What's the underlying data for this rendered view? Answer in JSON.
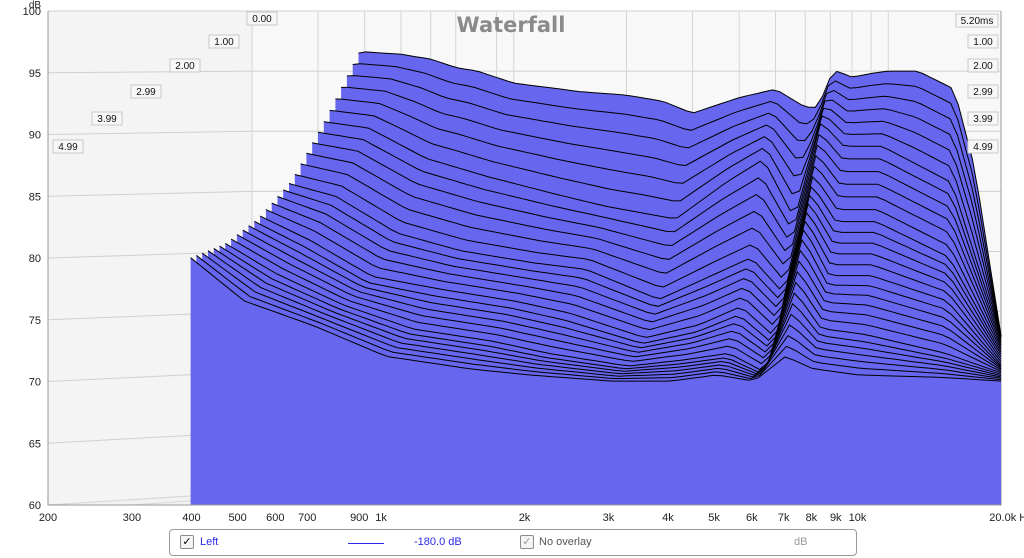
{
  "chart_data": {
    "type": "area",
    "title": "Waterfall",
    "ylabel": "dB",
    "xlabel_unit": "Hz",
    "ylim": [
      60,
      100
    ],
    "y_ticks": [
      "60",
      "65",
      "70",
      "75",
      "80",
      "85",
      "90",
      "95",
      "100"
    ],
    "x_ticks": [
      {
        "hz": 200,
        "label": "200"
      },
      {
        "hz": 300,
        "label": "300"
      },
      {
        "hz": 400,
        "label": "400"
      },
      {
        "hz": 500,
        "label": "500"
      },
      {
        "hz": 600,
        "label": "600"
      },
      {
        "hz": 700,
        "label": "700"
      },
      {
        "hz": 900,
        "label": "900"
      },
      {
        "hz": 1000,
        "label": "1k"
      },
      {
        "hz": 2000,
        "label": "2k"
      },
      {
        "hz": 3000,
        "label": "3k"
      },
      {
        "hz": 4000,
        "label": "4k"
      },
      {
        "hz": 5000,
        "label": "5k"
      },
      {
        "hz": 6000,
        "label": "6k"
      },
      {
        "hz": 7000,
        "label": "7k"
      },
      {
        "hz": 8000,
        "label": "8k"
      },
      {
        "hz": 9000,
        "label": "9k"
      },
      {
        "hz": 10000,
        "label": "10k"
      },
      {
        "hz": 20000,
        "label": "20.0k Hz"
      }
    ],
    "time_ticks_left": [
      "0.00",
      "1.00",
      "2.00",
      "2.99",
      "3.99",
      "4.99"
    ],
    "time_ticks_right": [
      "5.20ms",
      "1.00",
      "2.00",
      "2.99",
      "3.99",
      "4.99"
    ],
    "fill_color": "#6666ee",
    "line_color": "#000000",
    "series": [
      {
        "name": "Left",
        "time_ms": 0.0,
        "freq_hz": [
          385,
          400,
          500,
          600,
          700,
          800,
          1000,
          1500,
          2000,
          2500,
          3000,
          4000,
          5000,
          6000,
          6500,
          7000,
          7300,
          8000,
          9000,
          10000,
          12000,
          15000,
          17000,
          20000
        ],
        "db": [
          96.5,
          96.6,
          96.4,
          96.0,
          95.3,
          95.0,
          94.0,
          93.3,
          93.0,
          92.5,
          91.5,
          92.8,
          93.5,
          92.0,
          92.0,
          94.5,
          95.0,
          94.5,
          94.8,
          95.0,
          95.0,
          93.5,
          87,
          73
        ]
      },
      {
        "time_ms": 1.0,
        "freq_hz": [
          385,
          500,
          700,
          1000,
          1500,
          2000,
          3000,
          4000,
          5000,
          6000,
          7000,
          8000,
          10000,
          15000,
          20000
        ],
        "db": [
          91,
          90.5,
          88,
          86.5,
          85,
          84,
          83,
          86,
          88,
          83,
          91,
          89,
          89,
          86,
          73
        ]
      },
      {
        "time_ms": 2.0,
        "freq_hz": [
          385,
          500,
          700,
          1000,
          1500,
          2000,
          3000,
          4000,
          5000,
          6000,
          7000,
          8000,
          10000,
          15000,
          20000
        ],
        "db": [
          86,
          85,
          82,
          80.5,
          79.5,
          79,
          76.5,
          78.5,
          80,
          77,
          86,
          83,
          83,
          80,
          72
        ]
      },
      {
        "time_ms": 2.99,
        "freq_hz": [
          385,
          500,
          700,
          1000,
          1500,
          2000,
          3000,
          4000,
          5000,
          6000,
          7000,
          8000,
          10000,
          15000,
          20000
        ],
        "db": [
          83,
          81,
          78,
          77,
          76,
          75,
          73,
          74,
          75.5,
          73,
          82,
          78,
          78,
          76,
          71
        ]
      },
      {
        "time_ms": 3.99,
        "freq_hz": [
          385,
          500,
          700,
          1000,
          1500,
          2000,
          3000,
          4000,
          5000,
          6000,
          7000,
          8000,
          10000,
          15000,
          20000
        ],
        "db": [
          81,
          78.5,
          76,
          74,
          73,
          72,
          71,
          71.5,
          72,
          70.5,
          77,
          74,
          73.5,
          72,
          70.5
        ]
      },
      {
        "time_ms": 4.99,
        "freq_hz": [
          385,
          500,
          700,
          1000,
          1500,
          2000,
          3000,
          4000,
          5000,
          6000,
          7000,
          8000,
          10000,
          15000,
          20000
        ],
        "db": [
          80,
          76.5,
          74.5,
          72,
          71,
          70.5,
          70,
          70,
          70.5,
          70,
          72,
          71,
          70.5,
          70.3,
          70
        ]
      }
    ],
    "legend": [
      {
        "label": "Left",
        "value": "-180.0 dB",
        "color": "#2a2ae8"
      },
      {
        "label": "No overlay",
        "value": "dB"
      }
    ]
  },
  "legend_bar": {
    "check_mark": "✓",
    "series_label": "Left",
    "series_value": "-180.0 dB",
    "overlay_label": "No overlay",
    "overlay_unit": "dB"
  }
}
